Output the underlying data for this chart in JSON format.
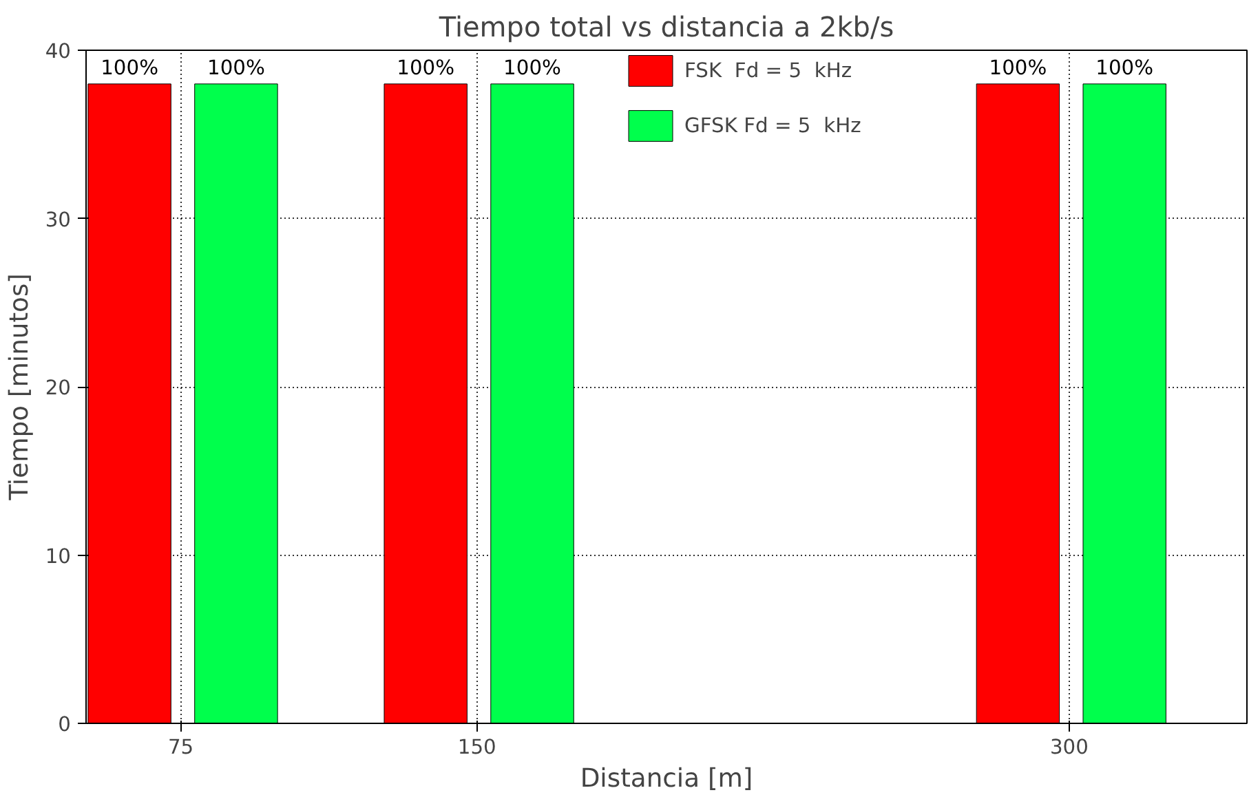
{
  "chart_data": {
    "type": "bar",
    "title": "Tiempo total vs distancia a 2kb/s",
    "xlabel": "Distancia [m]",
    "ylabel": "Tiempo [minutos]",
    "xlim": [
      51,
      345
    ],
    "xticks": [
      75,
      150,
      300
    ],
    "ylim": [
      0,
      40
    ],
    "yticks": [
      0,
      10,
      20,
      30,
      40
    ],
    "grid": true,
    "legend": "top right",
    "series": [
      {
        "name": "FSK  Fd = 5  kHz",
        "color": "#ff0000",
        "x": [
          62,
          137,
          287
        ],
        "values": [
          38,
          38,
          38
        ]
      },
      {
        "name": "GFSK Fd = 5  kHz",
        "color": "#00ff4c",
        "x": [
          89,
          164,
          314
        ],
        "values": [
          38,
          38,
          38
        ]
      }
    ],
    "annotations": [
      {
        "text": "100%",
        "x": 62,
        "y": 38
      },
      {
        "text": "100%",
        "x": 137,
        "y": 38
      },
      {
        "text": "100%",
        "x": 287,
        "y": 38
      },
      {
        "text": "100%",
        "x": 89,
        "y": 38
      },
      {
        "text": "100%",
        "x": 164,
        "y": 38
      },
      {
        "text": "100%",
        "x": 314,
        "y": 38
      }
    ]
  }
}
